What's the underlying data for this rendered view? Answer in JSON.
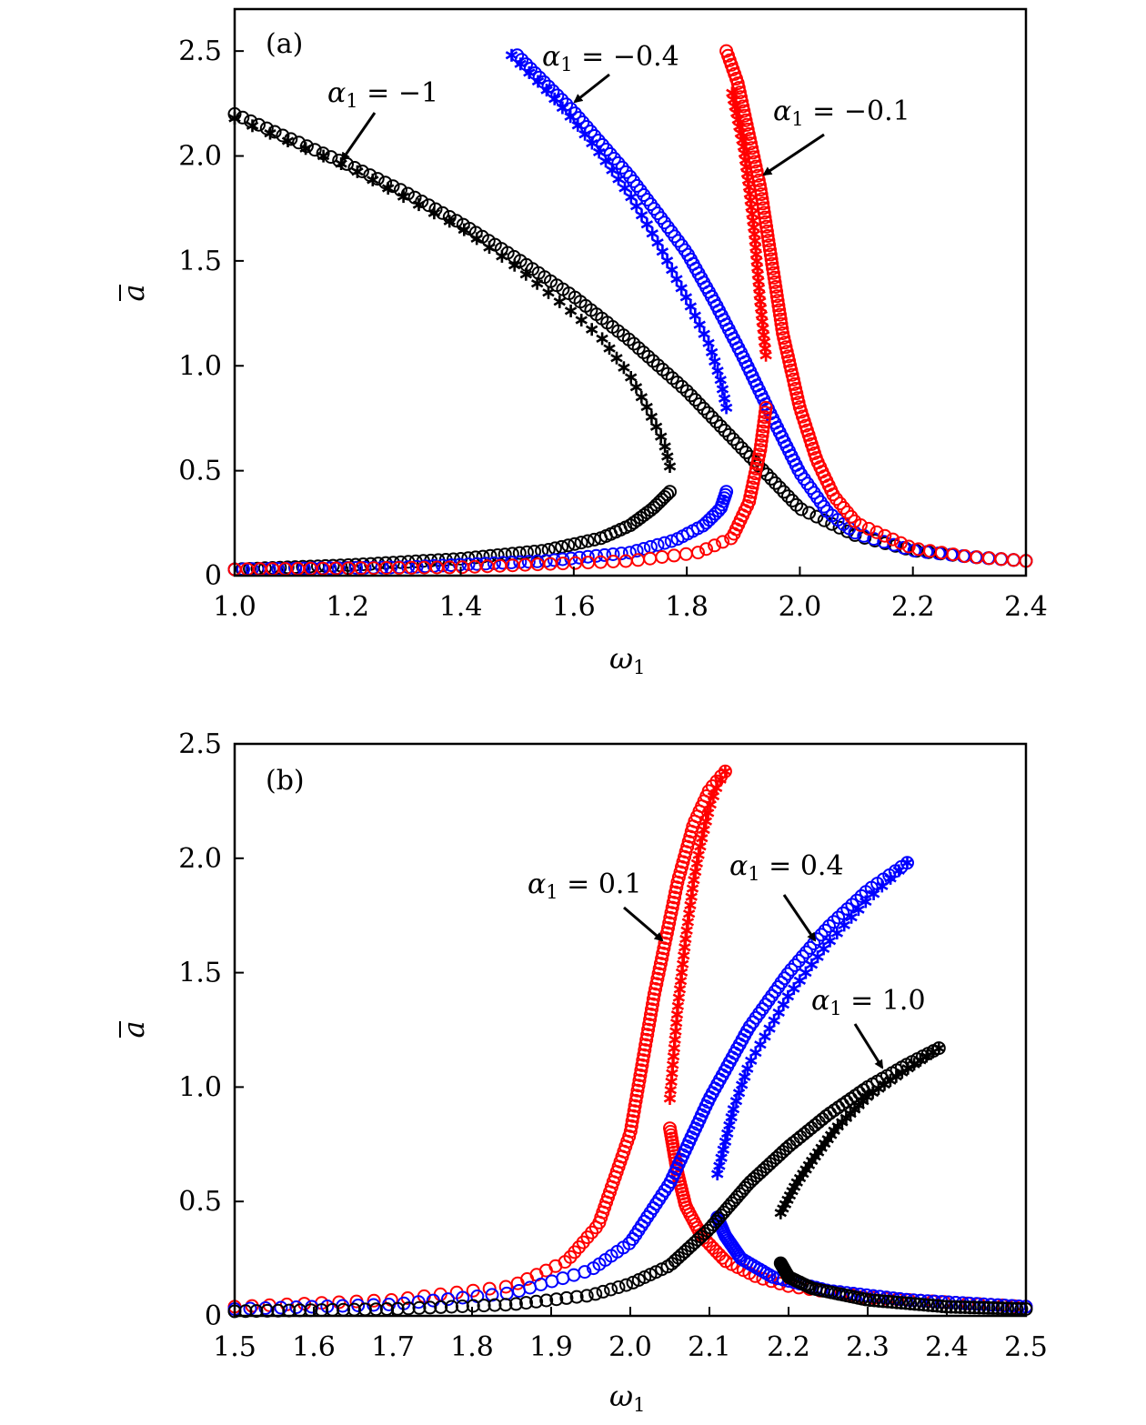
{
  "chart_data": [
    {
      "type": "scatter",
      "panel_label": "(a)",
      "xlabel": "ω",
      "xlabel_sub": "1",
      "ylabel": "a",
      "xlim": [
        1.0,
        2.4
      ],
      "ylim": [
        0,
        2.7
      ],
      "xticks": [
        "1.0",
        "1.2",
        "1.4",
        "1.6",
        "1.8",
        "2.0",
        "2.2",
        "2.4"
      ],
      "yticks": [
        "0",
        "0.5",
        "1.0",
        "1.5",
        "2.0",
        "2.5"
      ],
      "grid": false,
      "legend": "none",
      "series": [
        {
          "color": "#000000",
          "stable_branch": {
            "x": [
              1.0,
              1.1,
              1.2,
              1.3,
              1.4,
              1.5,
              1.6,
              1.7,
              1.8,
              1.9,
              2.0,
              2.1,
              2.2,
              2.3,
              2.4
            ],
            "y": [
              2.2,
              2.08,
              1.96,
              1.83,
              1.68,
              1.51,
              1.33,
              1.12,
              0.88,
              0.6,
              0.32,
              0.19,
              0.12,
              0.09,
              0.07
            ]
          },
          "upper_unstable_branch": {
            "x": [
              1.0,
              1.2,
              1.4,
              1.5,
              1.6,
              1.65,
              1.7,
              1.73,
              1.76,
              1.77
            ],
            "y": [
              2.18,
              1.95,
              1.66,
              1.47,
              1.25,
              1.13,
              0.95,
              0.8,
              0.63,
              0.52
            ]
          },
          "lower_branch": {
            "x": [
              1.0,
              1.2,
              1.4,
              1.55,
              1.65,
              1.7,
              1.74,
              1.77
            ],
            "y": [
              0.03,
              0.05,
              0.08,
              0.12,
              0.18,
              0.24,
              0.32,
              0.4
            ]
          }
        },
        {
          "color": "#0000ff",
          "stable_branch": {
            "x": [
              1.5,
              1.6,
              1.7,
              1.8,
              1.85,
              1.9,
              1.95,
              2.0,
              2.05,
              2.1,
              2.2,
              2.3,
              2.4
            ],
            "y": [
              2.48,
              2.21,
              1.9,
              1.54,
              1.3,
              1.04,
              0.76,
              0.49,
              0.3,
              0.2,
              0.12,
              0.09,
              0.07
            ]
          },
          "upper_unstable_branch": {
            "x": [
              1.49,
              1.55,
              1.6,
              1.65,
              1.7,
              1.75,
              1.8,
              1.84,
              1.86,
              1.87
            ],
            "y": [
              2.48,
              2.32,
              2.17,
              2.0,
              1.81,
              1.58,
              1.32,
              1.1,
              0.93,
              0.8
            ]
          },
          "lower_branch": {
            "x": [
              1.0,
              1.3,
              1.55,
              1.7,
              1.78,
              1.83,
              1.86,
              1.87
            ],
            "y": [
              0.03,
              0.04,
              0.07,
              0.11,
              0.17,
              0.24,
              0.32,
              0.4
            ]
          }
        },
        {
          "color": "#ff0000",
          "stable_branch": {
            "x": [
              1.87,
              1.89,
              1.91,
              1.93,
              1.95,
              1.97,
              2.0,
              2.03,
              2.06,
              2.1,
              2.2,
              2.3,
              2.4
            ],
            "y": [
              2.5,
              2.35,
              2.1,
              1.85,
              1.5,
              1.15,
              0.8,
              0.55,
              0.38,
              0.25,
              0.13,
              0.09,
              0.07
            ]
          },
          "upper_unstable_branch": {
            "x": [
              1.88,
              1.9,
              1.91,
              1.92,
              1.93,
              1.94
            ],
            "y": [
              2.3,
              2.05,
              1.85,
              1.62,
              1.3,
              1.05
            ]
          },
          "lower_branch": {
            "x": [
              1.0,
              1.4,
              1.7,
              1.82,
              1.88,
              1.91,
              1.93,
              1.94
            ],
            "y": [
              0.03,
              0.04,
              0.07,
              0.11,
              0.18,
              0.35,
              0.6,
              0.8
            ]
          }
        }
      ],
      "annotations": [
        {
          "var": "α",
          "sub": "1",
          "text": " = −1"
        },
        {
          "var": "α",
          "sub": "1",
          "text": " = −0.4"
        },
        {
          "var": "α",
          "sub": "1",
          "text": " = −0.1"
        }
      ]
    },
    {
      "type": "scatter",
      "panel_label": "(b)",
      "xlabel": "ω",
      "xlabel_sub": "1",
      "ylabel": "a",
      "xlim": [
        1.5,
        2.5
      ],
      "ylim": [
        0,
        2.5
      ],
      "xticks": [
        "1.5",
        "1.6",
        "1.7",
        "1.8",
        "1.9",
        "2.0",
        "2.1",
        "2.2",
        "2.3",
        "2.4",
        "2.5"
      ],
      "yticks": [
        "0",
        "0.5",
        "1.0",
        "1.5",
        "2.0",
        "2.5"
      ],
      "grid": false,
      "legend": "none",
      "series": [
        {
          "color": "#ff0000",
          "stable_branch": {
            "x": [
              1.5,
              1.7,
              1.85,
              1.92,
              1.96,
              2.0,
              2.03,
              2.06,
              2.08,
              2.1,
              2.12
            ],
            "y": [
              0.04,
              0.07,
              0.13,
              0.24,
              0.4,
              0.8,
              1.4,
              1.9,
              2.15,
              2.3,
              2.38
            ]
          },
          "upper_unstable_branch": {
            "x": [
              2.05,
              2.06,
              2.07,
              2.08,
              2.09,
              2.1,
              2.11,
              2.12
            ],
            "y": [
              0.95,
              1.35,
              1.65,
              1.9,
              2.08,
              2.22,
              2.32,
              2.38
            ]
          },
          "lower_branch": {
            "x": [
              2.05,
              2.06,
              2.07,
              2.09,
              2.12,
              2.16,
              2.2,
              2.3,
              2.4,
              2.5
            ],
            "y": [
              0.82,
              0.62,
              0.48,
              0.35,
              0.24,
              0.17,
              0.13,
              0.08,
              0.06,
              0.04
            ]
          }
        },
        {
          "color": "#0000ff",
          "stable_branch": {
            "x": [
              1.5,
              1.7,
              1.85,
              1.95,
              2.0,
              2.05,
              2.1,
              2.15,
              2.2,
              2.25,
              2.3,
              2.35
            ],
            "y": [
              0.03,
              0.05,
              0.1,
              0.2,
              0.32,
              0.58,
              0.95,
              1.26,
              1.5,
              1.7,
              1.86,
              1.98
            ]
          },
          "upper_unstable_branch": {
            "x": [
              2.11,
              2.13,
              2.15,
              2.18,
              2.2,
              2.25,
              2.3,
              2.35
            ],
            "y": [
              0.62,
              0.9,
              1.1,
              1.28,
              1.4,
              1.63,
              1.82,
              1.98
            ]
          },
          "lower_branch": {
            "x": [
              2.11,
              2.12,
              2.14,
              2.18,
              2.25,
              2.35,
              2.5
            ],
            "y": [
              0.43,
              0.35,
              0.25,
              0.17,
              0.11,
              0.07,
              0.04
            ]
          }
        },
        {
          "color": "#000000",
          "stable_branch": {
            "x": [
              1.5,
              1.7,
              1.85,
              1.95,
              2.0,
              2.05,
              2.1,
              2.15,
              2.2,
              2.25,
              2.3,
              2.35,
              2.39
            ],
            "y": [
              0.02,
              0.03,
              0.05,
              0.09,
              0.14,
              0.22,
              0.38,
              0.58,
              0.74,
              0.88,
              1.0,
              1.1,
              1.17
            ]
          },
          "upper_unstable_branch": {
            "x": [
              2.19,
              2.21,
              2.23,
              2.26,
              2.3,
              2.35,
              2.39
            ],
            "y": [
              0.45,
              0.58,
              0.68,
              0.82,
              0.96,
              1.08,
              1.17
            ]
          },
          "lower_branch": {
            "x": [
              2.19,
              2.2,
              2.23,
              2.3,
              2.4,
              2.5
            ],
            "y": [
              0.23,
              0.17,
              0.12,
              0.07,
              0.04,
              0.03
            ]
          }
        }
      ],
      "annotations": [
        {
          "var": "α",
          "sub": "1",
          "text": " = 0.1"
        },
        {
          "var": "α",
          "sub": "1",
          "text": " = 0.4"
        },
        {
          "var": "α",
          "sub": "1",
          "text": " = 1.0"
        }
      ]
    }
  ]
}
